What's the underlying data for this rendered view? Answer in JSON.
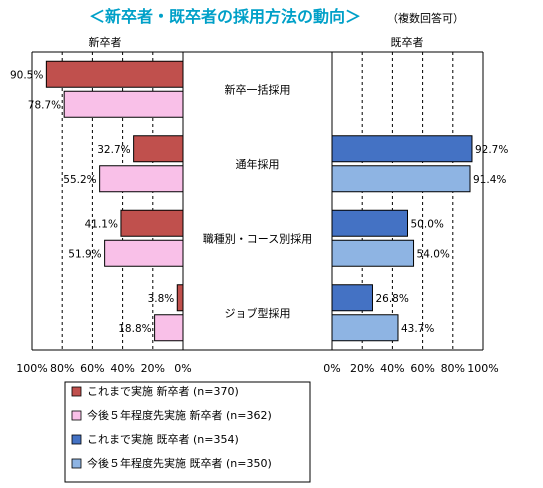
{
  "chart_data": {
    "type": "bar",
    "title": "＜新卒者・既卒者の採用方法の動向＞",
    "subtitle": "（複数回答可）",
    "left_panel_label": "新卒者",
    "right_panel_label": "既卒者",
    "categories": [
      "新卒一括採用",
      "通年採用",
      "職種別・コース別採用",
      "ジョブ型採用"
    ],
    "left_axis_ticks": [
      "100%",
      "80%",
      "60%",
      "40%",
      "20%",
      "0%"
    ],
    "right_axis_ticks": [
      "0%",
      "20%",
      "40%",
      "60%",
      "80%",
      "100%"
    ],
    "xlim": [
      0,
      100
    ],
    "grid": true,
    "series": [
      {
        "name": "これまで実施 新卒者 (n=370)",
        "panel": "left",
        "color": "#c0504d",
        "values": [
          90.5,
          32.7,
          41.1,
          3.8
        ],
        "labels": [
          "90.5%",
          "32.7%",
          "41.1%",
          "3.8%"
        ]
      },
      {
        "name": "今後５年程度先実施 新卒者 (n=362)",
        "panel": "left",
        "color": "#f9c0e8",
        "values": [
          78.7,
          55.2,
          51.9,
          18.8
        ],
        "labels": [
          "78.7%",
          "55.2%",
          "51.9%",
          "18.8%"
        ]
      },
      {
        "name": "これまで実施 既卒者 (n=354)",
        "panel": "right",
        "color": "#4472c4",
        "values": [
          null,
          92.7,
          50.0,
          26.8
        ],
        "labels": [
          null,
          "92.7%",
          "50.0%",
          "26.8%"
        ]
      },
      {
        "name": "今後５年程度先実施 既卒者 (n=350)",
        "panel": "right",
        "color": "#8eb4e3",
        "values": [
          null,
          91.4,
          54.0,
          43.7
        ],
        "labels": [
          null,
          "91.4%",
          "54.0%",
          "43.7%"
        ]
      }
    ],
    "legend_position": "bottom-left"
  }
}
